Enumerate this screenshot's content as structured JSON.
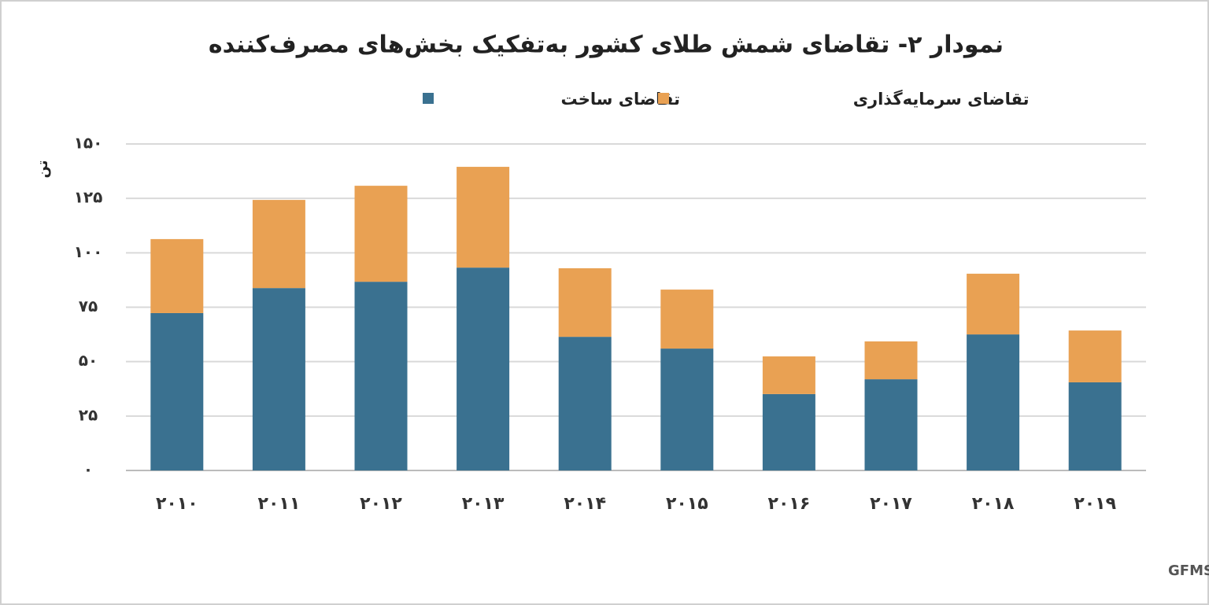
{
  "chart_data": {
    "type": "stacked_bar",
    "title": "نمودار ۲- تقاضای شمش طلای کشور به‌تفکیک بخش‌های مصرف‌کننده",
    "y_label": "تن",
    "categories": [
      "۲۰۱۰",
      "۲۰۱۱",
      "۲۰۱۲",
      "۲۰۱۳",
      "۲۰۱۴",
      "۲۰۱۵",
      "۲۰۱۶",
      "۲۰۱۷",
      "۲۰۱۸",
      "۲۰۱۹"
    ],
    "series": [
      {
        "name": "تقاضای ساخت",
        "color": "#3a7190",
        "values": [
          72.3,
          83.8,
          86.7,
          93.2,
          61.4,
          56,
          35.1,
          41.9,
          62.5,
          40.5
        ]
      },
      {
        "name": "تقاضای سرمایه‌گذاری",
        "color": "#e9a153",
        "values": [
          34,
          40.5,
          44.1,
          46.3,
          31.5,
          27.1,
          17.3,
          17.4,
          27.9,
          23.8
        ]
      }
    ],
    "ylim": [
      0,
      150
    ],
    "yticks": [
      {
        "value": 0,
        "label": "۰"
      },
      {
        "value": 25,
        "label": "۲۵"
      },
      {
        "value": 50,
        "label": "۵۰"
      },
      {
        "value": 75,
        "label": "۷۵"
      },
      {
        "value": 100,
        "label": "۱۰۰"
      },
      {
        "value": 125,
        "label": "۱۲۵"
      },
      {
        "value": 150,
        "label": "۱۵۰"
      }
    ],
    "grid": true,
    "source": "منبع: GFMS"
  }
}
